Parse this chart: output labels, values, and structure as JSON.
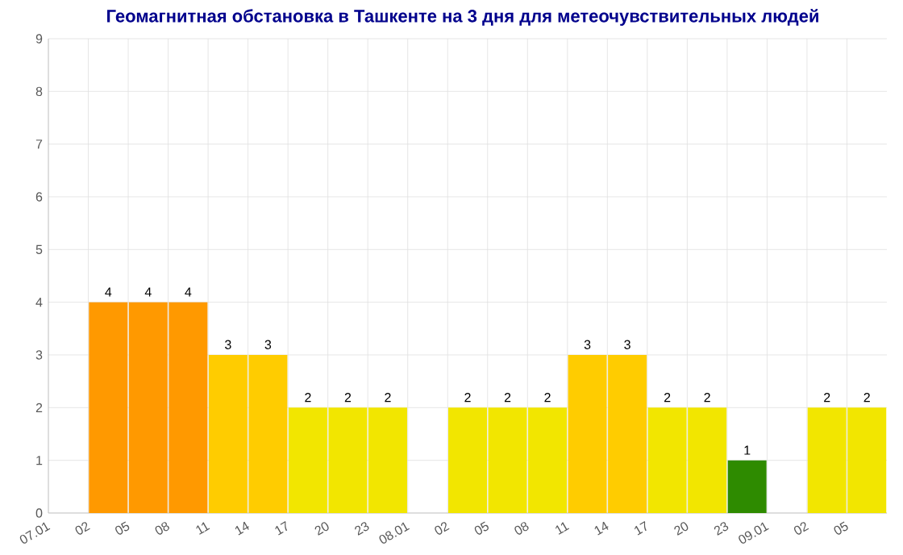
{
  "chart_data": {
    "type": "bar",
    "title": "Геомагнитная обстановка в Ташкенте на 3 дня для метеочувствительных людей",
    "categories": [
      "07.01",
      "02",
      "05",
      "08",
      "11",
      "14",
      "17",
      "20",
      "23",
      "08.01",
      "02",
      "05",
      "08",
      "11",
      "14",
      "17",
      "20",
      "23",
      "09.01",
      "02",
      "05"
    ],
    "values": [
      null,
      4,
      4,
      4,
      3,
      3,
      2,
      2,
      2,
      null,
      2,
      2,
      2,
      3,
      3,
      2,
      2,
      1,
      null,
      2,
      2
    ],
    "colors": [
      "#cccccc",
      "#ff9900",
      "#ff9900",
      "#ff9900",
      "#ffcc00",
      "#ffcc00",
      "#f2e600",
      "#f2e600",
      "#f2e600",
      "#cccccc",
      "#f2e600",
      "#f2e600",
      "#f2e600",
      "#ffcc00",
      "#ffcc00",
      "#f2e600",
      "#f2e600",
      "#2e8b00",
      "#cccccc",
      "#f2e600",
      "#f2e600"
    ],
    "ylim": [
      0,
      9
    ],
    "yticks": [
      0,
      1,
      2,
      3,
      4,
      5,
      6,
      7,
      8,
      9
    ],
    "grid": true,
    "data_labels": true
  }
}
